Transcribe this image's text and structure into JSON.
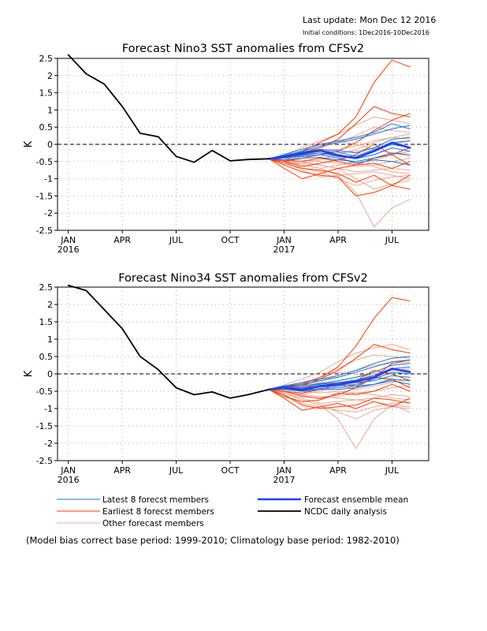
{
  "header": {
    "last_update": "Last update: Mon Dec 12 2016",
    "initial_conditions": "Initial conditions: 1Dec2016-10Dec2016"
  },
  "footer_note": "(Model bias correct base period: 1999-2010; Climatology base period: 1982-2010)",
  "legend": {
    "latest": "Latest 8 forecst members",
    "earliest": "Earliest 8 forecst members",
    "other": "Other forecast members",
    "mean": "Forecast ensemble mean",
    "ncdc": "NCDC daily analysis"
  },
  "colors": {
    "latest": "#1a6fd0",
    "earliest": "#ff3a00",
    "other": "#e8a898",
    "mean": "#1f3fff",
    "ncdc": "#000000",
    "grid": "#aaaaaa"
  },
  "chart_data": [
    {
      "type": "line",
      "title": "Forecast Nino3 SST anomalies from CFSv2",
      "ylabel": "K",
      "ylim": [
        -2.5,
        2.5
      ],
      "yticks": [
        2.5,
        2,
        1.5,
        1,
        0.5,
        0,
        -0.5,
        -1,
        -1.5,
        -2,
        -2.5
      ],
      "xticks": [
        {
          "x": 2016.0,
          "label": "JAN",
          "sublabel": "2016"
        },
        {
          "x": 2016.25,
          "label": "APR",
          "sublabel": ""
        },
        {
          "x": 2016.5,
          "label": "JUL",
          "sublabel": ""
        },
        {
          "x": 2016.75,
          "label": "OCT",
          "sublabel": ""
        },
        {
          "x": 2017.0,
          "label": "JAN",
          "sublabel": "2017"
        },
        {
          "x": 2017.25,
          "label": "APR",
          "sublabel": ""
        },
        {
          "x": 2017.5,
          "label": "JUL",
          "sublabel": ""
        }
      ],
      "xlim": [
        2015.95,
        2017.67
      ],
      "zero_line": "dashed",
      "grid": "dotted",
      "ncdc": {
        "x": [
          2016.0,
          2016.083,
          2016.167,
          2016.25,
          2016.333,
          2016.417,
          2016.5,
          2016.583,
          2016.667,
          2016.75,
          2016.833,
          2016.93
        ],
        "y": [
          2.6,
          2.05,
          1.75,
          1.1,
          0.32,
          0.22,
          -0.35,
          -0.52,
          -0.18,
          -0.48,
          -0.44,
          -0.42
        ]
      },
      "forecast_x": [
        2016.93,
        2017.0,
        2017.083,
        2017.167,
        2017.25,
        2017.333,
        2017.417,
        2017.5,
        2017.583
      ],
      "mean": [
        -0.42,
        -0.36,
        -0.26,
        -0.18,
        -0.32,
        -0.4,
        -0.2,
        0.05,
        -0.1
      ],
      "latest": [
        [
          -0.42,
          -0.35,
          -0.2,
          -0.05,
          0.05,
          0.15,
          0.3,
          0.45,
          0.55
        ],
        [
          -0.42,
          -0.3,
          -0.15,
          0.0,
          0.1,
          0.2,
          0.35,
          0.6,
          0.45
        ],
        [
          -0.42,
          -0.4,
          -0.32,
          -0.25,
          -0.3,
          -0.38,
          -0.2,
          0.0,
          -0.1
        ],
        [
          -0.42,
          -0.38,
          -0.28,
          -0.2,
          -0.22,
          -0.35,
          -0.15,
          0.05,
          0.1
        ],
        [
          -0.42,
          -0.45,
          -0.4,
          -0.38,
          -0.45,
          -0.5,
          -0.4,
          -0.25,
          -0.3
        ],
        [
          -0.42,
          -0.32,
          -0.22,
          -0.15,
          -0.18,
          -0.25,
          -0.1,
          0.15,
          0.2
        ],
        [
          -0.42,
          -0.36,
          -0.3,
          -0.25,
          -0.35,
          -0.42,
          -0.3,
          -0.1,
          -0.2
        ],
        [
          -0.42,
          -0.4,
          -0.35,
          -0.3,
          -0.4,
          -0.55,
          -0.45,
          -0.5,
          -0.6
        ]
      ],
      "earliest": [
        [
          -0.42,
          -0.35,
          -0.2,
          0.05,
          0.3,
          0.8,
          1.8,
          2.45,
          2.25
        ],
        [
          -0.42,
          -0.4,
          -0.25,
          -0.1,
          0.15,
          0.6,
          1.1,
          0.9,
          0.8
        ],
        [
          -0.42,
          -0.55,
          -0.7,
          -0.75,
          -0.85,
          -1.1,
          -0.9,
          -1.2,
          -1.3
        ],
        [
          -0.42,
          -0.5,
          -0.4,
          -0.3,
          -0.2,
          0.05,
          0.4,
          0.7,
          0.9
        ],
        [
          -0.42,
          -0.6,
          -0.8,
          -0.9,
          -0.95,
          -1.5,
          -1.4,
          -1.2,
          -0.9
        ],
        [
          -0.42,
          -0.45,
          -0.5,
          -0.4,
          -0.5,
          -0.6,
          -0.4,
          -0.3,
          -0.1
        ],
        [
          -0.42,
          -0.7,
          -1.0,
          -0.85,
          -0.7,
          -0.6,
          -0.55,
          -0.7,
          -0.5
        ],
        [
          -0.42,
          -0.5,
          -0.65,
          -0.55,
          -0.45,
          -0.3,
          0.0,
          -0.3,
          -0.6
        ]
      ],
      "other": [
        [
          -0.42,
          -0.3,
          -0.1,
          0.1,
          0.3,
          0.55,
          0.8,
          0.7,
          0.6
        ],
        [
          -0.42,
          -0.35,
          -0.2,
          -0.1,
          0.05,
          0.25,
          0.5,
          0.4,
          0.35
        ],
        [
          -0.42,
          -0.45,
          -0.5,
          -0.6,
          -0.7,
          -1.0,
          -1.3,
          -1.15,
          -1.05
        ],
        [
          -0.42,
          -0.5,
          -0.6,
          -0.7,
          -0.9,
          -1.4,
          -2.4,
          -1.85,
          -1.6
        ],
        [
          -0.42,
          -0.55,
          -0.7,
          -0.8,
          -1.0,
          -1.2,
          -1.05,
          -0.95,
          -0.9
        ],
        [
          -0.42,
          -0.4,
          -0.35,
          -0.3,
          -0.25,
          -0.2,
          -0.1,
          0.0,
          0.1
        ],
        [
          -0.42,
          -0.38,
          -0.3,
          -0.2,
          -0.15,
          -0.05,
          0.1,
          0.2,
          0.3
        ],
        [
          -0.42,
          -0.47,
          -0.55,
          -0.6,
          -0.7,
          -0.8,
          -0.75,
          -0.7,
          -0.75
        ],
        [
          -0.42,
          -0.5,
          -0.75,
          -0.95,
          -0.9,
          -0.85,
          -0.8,
          -0.9,
          -1.0
        ],
        [
          -0.42,
          -0.4,
          -0.45,
          -0.5,
          -0.55,
          -0.65,
          -0.6,
          -0.5,
          -0.4
        ],
        [
          -0.42,
          -0.35,
          -0.25,
          -0.15,
          -0.35,
          -0.55,
          -0.45,
          -0.3,
          -0.2
        ],
        [
          -0.42,
          -0.32,
          -0.2,
          -0.05,
          0.1,
          0.0,
          -0.15,
          -0.25,
          -0.35
        ],
        [
          -0.42,
          -0.45,
          -0.6,
          -0.7,
          -0.6,
          -0.5,
          -0.65,
          -0.8,
          -0.85
        ],
        [
          -0.42,
          -0.5,
          -0.55,
          -0.45,
          -0.3,
          -0.15,
          0.05,
          0.2,
          0.15
        ]
      ]
    },
    {
      "type": "line",
      "title": "Forecast Nino34 SST anomalies from CFSv2",
      "ylabel": "K",
      "ylim": [
        -2.5,
        2.5
      ],
      "yticks": [
        2.5,
        2,
        1.5,
        1,
        0.5,
        0,
        -0.5,
        -1,
        -1.5,
        -2,
        -2.5
      ],
      "xticks": [
        {
          "x": 2016.0,
          "label": "JAN",
          "sublabel": "2016"
        },
        {
          "x": 2016.25,
          "label": "APR",
          "sublabel": ""
        },
        {
          "x": 2016.5,
          "label": "JUL",
          "sublabel": ""
        },
        {
          "x": 2016.75,
          "label": "OCT",
          "sublabel": ""
        },
        {
          "x": 2017.0,
          "label": "JAN",
          "sublabel": "2017"
        },
        {
          "x": 2017.25,
          "label": "APR",
          "sublabel": ""
        },
        {
          "x": 2017.5,
          "label": "JUL",
          "sublabel": ""
        }
      ],
      "xlim": [
        2015.95,
        2017.67
      ],
      "zero_line": "dashed",
      "grid": "dotted",
      "ncdc": {
        "x": [
          2016.0,
          2016.083,
          2016.167,
          2016.25,
          2016.333,
          2016.417,
          2016.5,
          2016.583,
          2016.667,
          2016.75,
          2016.833,
          2016.93
        ],
        "y": [
          2.55,
          2.4,
          1.85,
          1.3,
          0.5,
          0.12,
          -0.4,
          -0.6,
          -0.52,
          -0.7,
          -0.6,
          -0.45
        ]
      },
      "forecast_x": [
        2016.93,
        2017.0,
        2017.083,
        2017.167,
        2017.25,
        2017.333,
        2017.417,
        2017.5,
        2017.583
      ],
      "mean": [
        -0.45,
        -0.38,
        -0.47,
        -0.35,
        -0.3,
        -0.22,
        -0.1,
        0.15,
        0.05
      ],
      "latest": [
        [
          -0.45,
          -0.38,
          -0.3,
          -0.2,
          -0.1,
          0.05,
          0.2,
          0.35,
          0.4
        ],
        [
          -0.45,
          -0.35,
          -0.25,
          -0.15,
          -0.05,
          0.1,
          0.3,
          0.45,
          0.5
        ],
        [
          -0.45,
          -0.42,
          -0.45,
          -0.38,
          -0.35,
          -0.3,
          -0.15,
          0.05,
          0.0
        ],
        [
          -0.45,
          -0.4,
          -0.4,
          -0.3,
          -0.25,
          -0.18,
          -0.05,
          0.15,
          0.2
        ],
        [
          -0.45,
          -0.45,
          -0.5,
          -0.45,
          -0.45,
          -0.4,
          -0.3,
          -0.15,
          -0.2
        ],
        [
          -0.45,
          -0.37,
          -0.35,
          -0.28,
          -0.2,
          -0.1,
          0.05,
          0.25,
          0.3
        ],
        [
          -0.45,
          -0.4,
          -0.42,
          -0.35,
          -0.32,
          -0.25,
          -0.2,
          -0.05,
          -0.1
        ],
        [
          -0.45,
          -0.43,
          -0.48,
          -0.42,
          -0.4,
          -0.35,
          -0.3,
          -0.2,
          -0.3
        ]
      ],
      "earliest": [
        [
          -0.45,
          -0.35,
          -0.3,
          -0.1,
          0.2,
          0.8,
          1.6,
          2.2,
          2.1
        ],
        [
          -0.45,
          -0.4,
          -0.35,
          -0.15,
          0.1,
          0.45,
          0.85,
          0.7,
          0.6
        ],
        [
          -0.45,
          -0.6,
          -0.9,
          -1.0,
          -0.95,
          -0.9,
          -0.7,
          -0.75,
          -0.85
        ],
        [
          -0.45,
          -0.5,
          -0.65,
          -0.7,
          -0.6,
          -0.4,
          -0.1,
          0.3,
          0.4
        ],
        [
          -0.45,
          -0.7,
          -1.05,
          -0.95,
          -0.85,
          -1.0,
          -0.8,
          -0.95,
          -0.7
        ],
        [
          -0.45,
          -0.45,
          -0.4,
          -0.35,
          -0.25,
          -0.2,
          0.1,
          0.0,
          -0.2
        ],
        [
          -0.45,
          -0.65,
          -0.8,
          -0.75,
          -0.55,
          -0.6,
          -0.5,
          -0.3,
          -0.5
        ],
        [
          -0.45,
          -0.5,
          -0.55,
          -0.45,
          -0.3,
          -0.35,
          -0.1,
          -0.15,
          -0.4
        ]
      ],
      "other": [
        [
          -0.45,
          -0.32,
          -0.15,
          0.05,
          0.35,
          0.6,
          0.75,
          0.85,
          0.7
        ],
        [
          -0.45,
          -0.38,
          -0.28,
          -0.1,
          0.15,
          0.4,
          0.55,
          0.5,
          0.45
        ],
        [
          -0.45,
          -0.55,
          -0.75,
          -0.9,
          -1.1,
          -1.3,
          -1.05,
          -0.95,
          -1.0
        ],
        [
          -0.45,
          -0.55,
          -0.75,
          -0.9,
          -1.3,
          -2.15,
          -1.3,
          -0.9,
          -1.1
        ],
        [
          -0.45,
          -0.6,
          -0.85,
          -0.95,
          -1.05,
          -1.1,
          -0.95,
          -0.85,
          -0.8
        ],
        [
          -0.45,
          -0.42,
          -0.38,
          -0.3,
          -0.2,
          -0.1,
          0.0,
          0.1,
          0.15
        ],
        [
          -0.45,
          -0.4,
          -0.32,
          -0.2,
          -0.05,
          0.1,
          0.25,
          0.3,
          0.35
        ],
        [
          -0.45,
          -0.5,
          -0.6,
          -0.65,
          -0.7,
          -0.75,
          -0.7,
          -0.6,
          -0.65
        ],
        [
          -0.45,
          -0.55,
          -0.7,
          -0.85,
          -0.8,
          -0.75,
          -0.8,
          -0.9,
          -0.95
        ],
        [
          -0.45,
          -0.45,
          -0.5,
          -0.55,
          -0.5,
          -0.55,
          -0.5,
          -0.4,
          -0.35
        ],
        [
          -0.45,
          -0.4,
          -0.35,
          -0.25,
          -0.3,
          -0.45,
          -0.35,
          -0.25,
          -0.15
        ],
        [
          -0.45,
          -0.36,
          -0.25,
          -0.1,
          0.05,
          0.0,
          -0.1,
          -0.2,
          -0.3
        ],
        [
          -0.45,
          -0.5,
          -0.62,
          -0.72,
          -0.65,
          -0.55,
          -0.6,
          -0.7,
          -0.75
        ],
        [
          -0.45,
          -0.52,
          -0.58,
          -0.5,
          -0.35,
          -0.2,
          0.0,
          0.15,
          0.1
        ]
      ]
    }
  ]
}
